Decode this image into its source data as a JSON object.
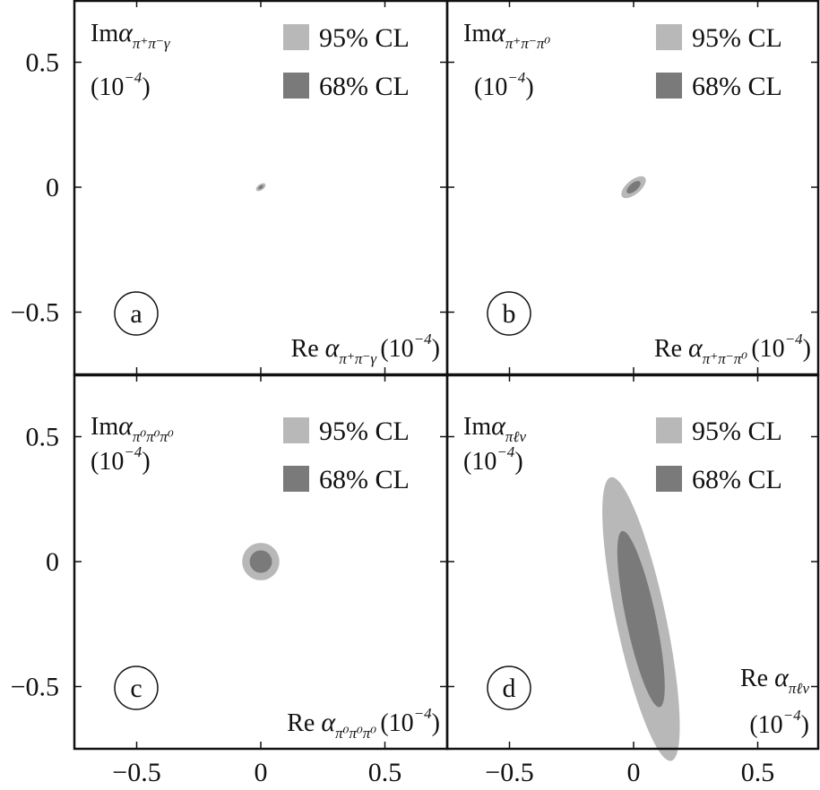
{
  "chart_data": [
    {
      "type": "scatter",
      "panel": "a",
      "ylabel": "Imα_{π+π−γ}",
      "ylabel_main": "Im",
      "ylabel_alpha": "α",
      "ylabel_sub": "π⁺π⁻γ",
      "xlabel_main": "Re",
      "xlabel_alpha": "α",
      "xlabel_sub": "π⁺π⁻γ",
      "unit": "(10",
      "unit_exp": "−4",
      "unit_close": ")",
      "xlim": [
        -0.75,
        0.75
      ],
      "ylim": [
        -0.75,
        0.75
      ],
      "legend": [
        "95% CL",
        "68% CL"
      ],
      "legend_position": "top-right",
      "regions": [
        {
          "level": "95% CL",
          "center": [
            0.0,
            0.0
          ],
          "semi_axes": [
            0.022,
            0.012
          ],
          "tilt_deg": -35
        },
        {
          "level": "68% CL",
          "center": [
            0.0,
            0.0
          ],
          "semi_axes": [
            0.012,
            0.006
          ],
          "tilt_deg": -35
        }
      ]
    },
    {
      "type": "scatter",
      "panel": "b",
      "ylabel_main": "Im",
      "ylabel_alpha": "α",
      "ylabel_sub": "π⁺π⁻π⁰",
      "xlabel_main": "Re",
      "xlabel_alpha": "α",
      "xlabel_sub": "π⁺π⁻π⁰",
      "unit": "(10",
      "unit_exp": "−4",
      "unit_close": ")",
      "xlim": [
        -0.75,
        0.75
      ],
      "ylim": [
        -0.75,
        0.75
      ],
      "legend": [
        "95% CL",
        "68% CL"
      ],
      "legend_position": "top-right",
      "regions": [
        {
          "level": "95% CL",
          "center": [
            0.0,
            0.0
          ],
          "semi_axes": [
            0.06,
            0.028
          ],
          "tilt_deg": -40
        },
        {
          "level": "68% CL",
          "center": [
            0.0,
            0.0
          ],
          "semi_axes": [
            0.034,
            0.016
          ],
          "tilt_deg": -40
        }
      ]
    },
    {
      "type": "scatter",
      "panel": "c",
      "ylabel_main": "Im",
      "ylabel_alpha": "α",
      "ylabel_sub": "π⁰π⁰π⁰",
      "xlabel_main": "Re",
      "xlabel_alpha": "α",
      "xlabel_sub": "π⁰π⁰π⁰",
      "unit": "(10",
      "unit_exp": "−4",
      "unit_close": ")",
      "xlim": [
        -0.75,
        0.75
      ],
      "ylim": [
        -0.75,
        0.75
      ],
      "legend": [
        "95% CL",
        "68% CL"
      ],
      "legend_position": "top-right",
      "regions": [
        {
          "level": "95% CL",
          "center": [
            0.0,
            0.0
          ],
          "semi_axes": [
            0.075,
            0.075
          ],
          "tilt_deg": 0
        },
        {
          "level": "68% CL",
          "center": [
            0.0,
            0.0
          ],
          "semi_axes": [
            0.045,
            0.045
          ],
          "tilt_deg": 0
        }
      ]
    },
    {
      "type": "scatter",
      "panel": "d",
      "ylabel_main": "Im",
      "ylabel_alpha": "α",
      "ylabel_sub": "πℓν",
      "xlabel_main": "Re",
      "xlabel_alpha": "α",
      "xlabel_sub": "πℓν",
      "unit": "(10",
      "unit_exp": "−4",
      "unit_close": ")",
      "xlim": [
        -0.75,
        0.75
      ],
      "ylim": [
        -0.75,
        0.75
      ],
      "legend": [
        "95% CL",
        "68% CL"
      ],
      "legend_position": "top-right",
      "regions": [
        {
          "level": "95% CL",
          "center": [
            0.03,
            -0.23
          ],
          "semi_axes": [
            0.1,
            0.58
          ],
          "tilt_deg": -12
        },
        {
          "level": "68% CL",
          "center": [
            0.03,
            -0.23
          ],
          "semi_axes": [
            0.06,
            0.36
          ],
          "tilt_deg": -12
        }
      ]
    }
  ],
  "x_ticks": [
    "−0.5",
    "0",
    "0.5"
  ],
  "y_ticks": [
    "0.5",
    "0",
    "−0.5"
  ],
  "colors": {
    "cl95": "#b8b8b8",
    "cl68": "#7a7a7a",
    "axis": "#111111"
  }
}
